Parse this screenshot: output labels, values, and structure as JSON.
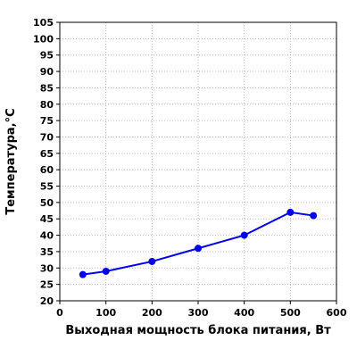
{
  "chart_data": {
    "type": "line",
    "title": "",
    "xlabel": "Выходная мощность блока питания, Вт",
    "ylabel": "Температура,°C",
    "xlim": [
      0,
      600
    ],
    "ylim": [
      20,
      105
    ],
    "x_ticks": [
      0,
      100,
      200,
      300,
      400,
      500,
      600
    ],
    "y_ticks": [
      20,
      25,
      30,
      35,
      40,
      45,
      50,
      55,
      60,
      65,
      70,
      75,
      80,
      85,
      90,
      95,
      100,
      105
    ],
    "grid": true,
    "series": [
      {
        "x": [
          50,
          100,
          200,
          300,
          400,
          500,
          550
        ],
        "y": [
          28,
          29,
          32,
          36,
          40,
          47,
          46
        ],
        "color": "#0000ee"
      }
    ]
  }
}
